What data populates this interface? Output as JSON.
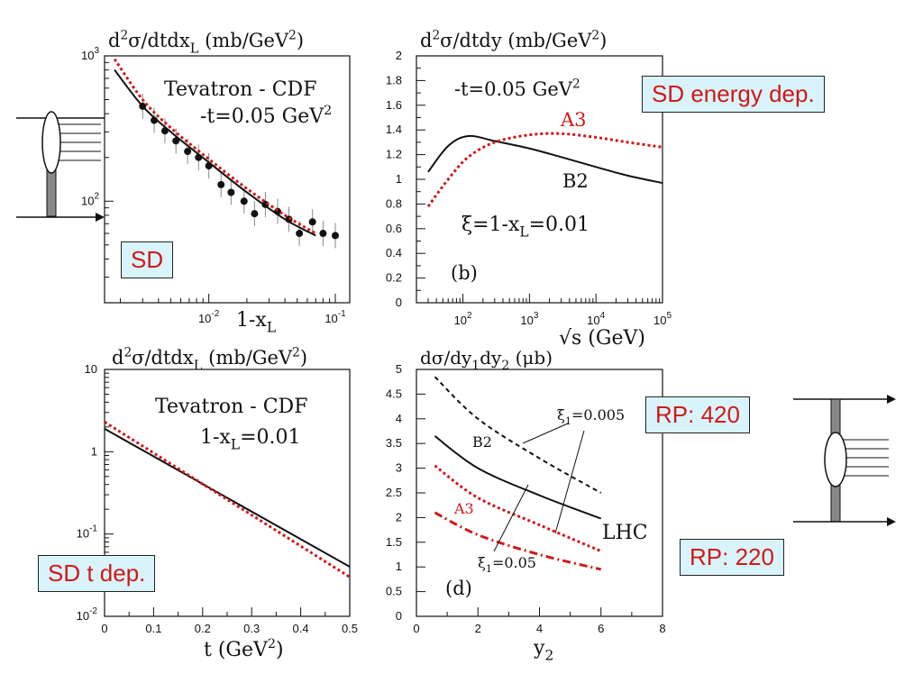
{
  "annotations": {
    "sd": "SD",
    "sd_energy": "SD energy dep.",
    "sd_t": "SD t dep.",
    "rp420": "RP: 420",
    "rp220": "RP: 220"
  },
  "colors": {
    "red": "#d01818",
    "black": "#111111",
    "box_bg": "#d8f4fa"
  },
  "chart_data": [
    {
      "id": "a",
      "type": "scatter",
      "title": "d²σ/dtdx_L (mb/GeV²)",
      "xlabel": "1-x_L",
      "xscale": "log",
      "yscale": "log",
      "xlim": [
        0.0015,
        0.13
      ],
      "ylim": [
        20,
        1000
      ],
      "x_ticks": [
        "10^-2",
        "10^-1"
      ],
      "y_ticks": [
        "10^2",
        "10^3"
      ],
      "annotations": [
        "Tevatron - CDF",
        "-t=0.05 GeV²"
      ],
      "series": [
        {
          "kind": "points",
          "x": [
            0.003,
            0.0037,
            0.0045,
            0.0055,
            0.0068,
            0.0083,
            0.01,
            0.0125,
            0.015,
            0.019,
            0.023,
            0.028,
            0.035,
            0.043,
            0.052,
            0.066,
            0.08,
            0.1
          ],
          "y": [
            450,
            360,
            305,
            260,
            220,
            200,
            175,
            130,
            115,
            100,
            82,
            95,
            85,
            75,
            60,
            72,
            60,
            58
          ]
        },
        {
          "kind": "line",
          "color": "black",
          "x": [
            0.0018,
            0.003,
            0.005,
            0.01,
            0.02,
            0.04,
            0.07
          ],
          "y": [
            800,
            450,
            300,
            185,
            115,
            75,
            58
          ]
        },
        {
          "kind": "dotted",
          "color": "red",
          "x": [
            0.0018,
            0.003,
            0.005,
            0.01,
            0.02,
            0.04,
            0.07
          ],
          "y": [
            950,
            500,
            320,
            195,
            122,
            80,
            60
          ]
        }
      ]
    },
    {
      "id": "b",
      "type": "line",
      "title": "d²σ/dtdy (mb/GeV²)",
      "xlabel": "√s (GeV)",
      "xscale": "log",
      "xlim": [
        20,
        100000
      ],
      "ylim": [
        0,
        2
      ],
      "x_ticks": [
        "10^2",
        "10^3",
        "10^4",
        "10^5"
      ],
      "y_ticks": [
        "0",
        "0.2",
        "0.4",
        "0.6",
        "0.8",
        "1",
        "1.2",
        "1.4",
        "1.6",
        "1.8",
        "2"
      ],
      "annotations": [
        "-t=0.05 GeV²",
        "ξ=1-x_L=0.01",
        "(b)"
      ],
      "series": [
        {
          "name": "B2",
          "kind": "line",
          "color": "black",
          "x": [
            30,
            60,
            120,
            300,
            1000,
            3000,
            10000,
            30000,
            100000
          ],
          "y": [
            1.06,
            1.27,
            1.35,
            1.31,
            1.25,
            1.18,
            1.1,
            1.03,
            0.97
          ]
        },
        {
          "name": "A3",
          "kind": "dotted",
          "color": "red",
          "x": [
            30,
            60,
            120,
            300,
            1000,
            3000,
            10000,
            30000,
            100000
          ],
          "y": [
            0.78,
            1.0,
            1.18,
            1.3,
            1.36,
            1.37,
            1.34,
            1.3,
            1.26
          ]
        }
      ]
    },
    {
      "id": "c",
      "type": "line",
      "title": "d²σ/dtdx_L (mb/GeV²)",
      "xlabel": "t (GeV²)",
      "yscale": "log",
      "xlim": [
        0,
        0.5
      ],
      "ylim": [
        0.01,
        10
      ],
      "x_ticks": [
        "0",
        "0.1",
        "0.2",
        "0.3",
        "0.4",
        "0.5"
      ],
      "y_ticks": [
        "10^-2",
        "10^-1",
        "1",
        "10"
      ],
      "annotations": [
        "Tevatron - CDF",
        "1-x_L=0.01"
      ],
      "series": [
        {
          "kind": "line",
          "color": "black",
          "x": [
            0,
            0.5
          ],
          "y": [
            1.9,
            0.04
          ]
        },
        {
          "kind": "dotted",
          "color": "red",
          "x": [
            0,
            0.5
          ],
          "y": [
            2.3,
            0.03
          ]
        }
      ]
    },
    {
      "id": "d",
      "type": "line",
      "title": "dσ/dy₁dy₂ (μb)",
      "xlabel": "y₂",
      "xlim": [
        0,
        8
      ],
      "ylim": [
        0,
        5
      ],
      "x_ticks": [
        "0",
        "2",
        "4",
        "6",
        "8"
      ],
      "y_ticks": [
        "0",
        "0.5",
        "1",
        "1.5",
        "2",
        "2.5",
        "3",
        "3.5",
        "4",
        "4.5",
        "5"
      ],
      "annotations": [
        "B2",
        "A3",
        "ξ₁=0.005",
        "ξ₁=0.05",
        "LHC",
        "(d)"
      ],
      "series": [
        {
          "kind": "dashed",
          "color": "black",
          "x": [
            0.6,
            2,
            4,
            6
          ],
          "y": [
            4.85,
            4.0,
            3.2,
            2.5
          ]
        },
        {
          "kind": "line",
          "color": "black",
          "x": [
            0.6,
            2,
            4,
            6
          ],
          "y": [
            3.65,
            3.0,
            2.45,
            1.98
          ]
        },
        {
          "kind": "dotted",
          "color": "red",
          "x": [
            0.6,
            2,
            4,
            6
          ],
          "y": [
            3.05,
            2.4,
            1.85,
            1.32
          ]
        },
        {
          "kind": "dashdot",
          "color": "red",
          "x": [
            0.6,
            2,
            4,
            6
          ],
          "y": [
            2.1,
            1.65,
            1.25,
            0.95
          ]
        }
      ]
    }
  ]
}
